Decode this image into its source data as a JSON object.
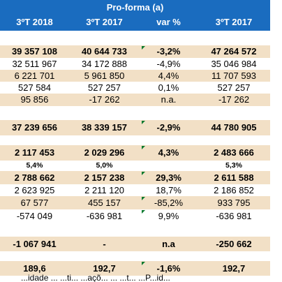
{
  "header": {
    "title": "Pro-forma (a)",
    "columns": [
      "3ºT 2018",
      "3ºT 2017",
      "var %",
      "3ºT 2017"
    ]
  },
  "rows": [
    {
      "cells": [
        "39 357 108",
        "40 644 733",
        "-3,2%",
        "47 264 572"
      ],
      "bold": true,
      "shade": true,
      "tri": true
    },
    {
      "cells": [
        "32 511 967",
        "34 172 888",
        "-4,9%",
        "35 046 984"
      ],
      "bold": false,
      "shade": false,
      "tri": false
    },
    {
      "cells": [
        "6 221 701",
        "5 961 850",
        "4,4%",
        "11 707 593"
      ],
      "bold": false,
      "shade": true,
      "tri": false
    },
    {
      "cells": [
        "527 584",
        "527 257",
        "0,1%",
        "527 257"
      ],
      "bold": false,
      "shade": false,
      "tri": false
    },
    {
      "cells": [
        "95 856",
        "-17 262",
        "n.a.",
        "-17 262"
      ],
      "bold": false,
      "shade": true,
      "tri": false
    },
    {
      "cells": [
        "37 239 656",
        "38 339 157",
        "-2,9%",
        "44 780 905"
      ],
      "bold": true,
      "shade": true,
      "tri": true
    },
    {
      "cells": [
        "2 117 453",
        "2 029 296",
        "4,3%",
        "2 483 666"
      ],
      "bold": true,
      "shade": true,
      "tri": true
    },
    {
      "cells": [
        "5,4%",
        "5,0%",
        "",
        "5,3%"
      ],
      "bold": true,
      "shade": false,
      "tri": false,
      "small": true
    },
    {
      "cells": [
        "2 788 662",
        "2 157 238",
        "29,3%",
        "2 611 588"
      ],
      "bold": true,
      "shade": true,
      "tri": true
    },
    {
      "cells": [
        "2 623 925",
        "2 211 120",
        "18,7%",
        "2 186 852"
      ],
      "bold": false,
      "shade": false,
      "tri": false
    },
    {
      "cells": [
        "67 577",
        "455 157",
        "-85,2%",
        "933 795"
      ],
      "bold": false,
      "shade": true,
      "tri": true
    },
    {
      "cells": [
        "-574 049",
        "-636 981",
        "9,9%",
        "-636 981"
      ],
      "bold": false,
      "shade": false,
      "tri": true
    },
    {
      "cells": [
        "-1 067 941",
        "-",
        "n.a",
        "-250 662"
      ],
      "bold": true,
      "shade": true,
      "tri": false
    },
    {
      "cells": [
        "189,6",
        "192,7",
        "-1,6%",
        "192,7"
      ],
      "bold": true,
      "shade": true,
      "tri": true
    }
  ],
  "footer": "...idade ... ...ti... ...açõ... ... ...t... ...P...id..."
}
